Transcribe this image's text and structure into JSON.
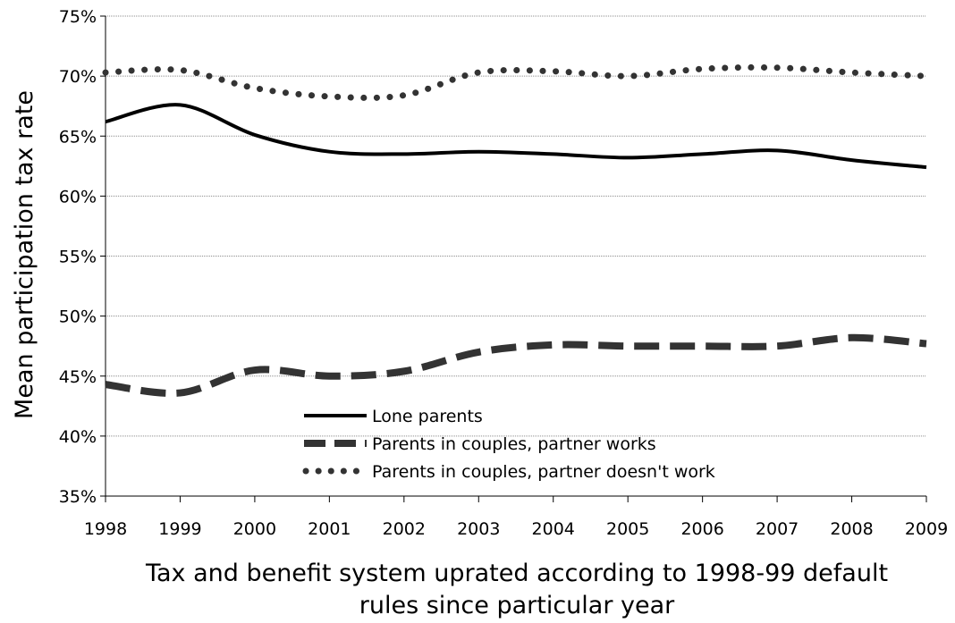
{
  "chart_data": {
    "type": "line",
    "title": "",
    "xlabel_line1": "Tax and benefit system uprated according to 1998-99 default",
    "xlabel_line2": "rules since particular year",
    "ylabel": "Mean participation tax rate",
    "x": [
      1998,
      1999,
      2000,
      2001,
      2002,
      2003,
      2004,
      2005,
      2006,
      2007,
      2008,
      2009
    ],
    "x_tick_labels": [
      "1998",
      "1999",
      "2000",
      "2001",
      "2002",
      "2003",
      "2004",
      "2005",
      "2006",
      "2007",
      "2008",
      "2009"
    ],
    "ylim": [
      35,
      75
    ],
    "y_ticks": [
      35,
      40,
      45,
      50,
      55,
      60,
      65,
      70,
      75
    ],
    "y_tick_labels": [
      "35%",
      "40%",
      "45%",
      "50%",
      "55%",
      "60%",
      "65%",
      "70%",
      "75%"
    ],
    "grid": true,
    "legend_position": "bottom-center",
    "series": [
      {
        "name": "Lone parents",
        "style": "solid",
        "color": "#000000",
        "values": [
          66.2,
          67.6,
          65.1,
          63.7,
          63.5,
          63.7,
          63.5,
          63.2,
          63.5,
          63.8,
          63.0,
          62.4
        ]
      },
      {
        "name": "Parents in couples, partner works",
        "style": "dashed",
        "color": "#333333",
        "values": [
          44.3,
          43.6,
          45.5,
          45.0,
          45.4,
          47.0,
          47.6,
          47.5,
          47.5,
          47.5,
          48.2,
          47.7
        ]
      },
      {
        "name": "Parents in couples, partner doesn't work",
        "style": "dotted",
        "color": "#333333",
        "values": [
          70.3,
          70.5,
          69.0,
          68.3,
          68.4,
          70.3,
          70.4,
          70.0,
          70.6,
          70.7,
          70.3,
          70.0
        ]
      }
    ]
  }
}
